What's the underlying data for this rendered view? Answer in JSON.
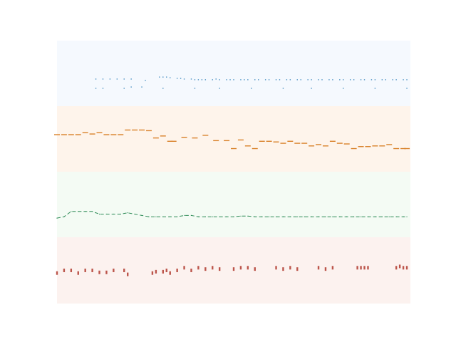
{
  "chart_data": {
    "type": "line",
    "title": "",
    "xlabel": "",
    "ylabel": "",
    "xlim": [
      0,
      1
    ],
    "grid": false,
    "legend": false,
    "bands": [
      {
        "color": "#1f77b4",
        "fill": "#f5f9fe"
      },
      {
        "color": "#d9822b",
        "fill": "#fef4eb"
      },
      {
        "color": "#2e8b57",
        "fill": "#f4fbf4"
      },
      {
        "color": "#b03a2e",
        "fill": "#fcf2ef"
      }
    ],
    "series": [
      {
        "kind": "dots",
        "values": [
          [
            0.11,
            0.42
          ],
          [
            0.13,
            0.42
          ],
          [
            0.15,
            0.42
          ],
          [
            0.17,
            0.42
          ],
          [
            0.19,
            0.42
          ],
          [
            0.21,
            0.42
          ],
          [
            0.25,
            0.4
          ],
          [
            0.29,
            0.45
          ],
          [
            0.3,
            0.45
          ],
          [
            0.31,
            0.45
          ],
          [
            0.32,
            0.44
          ],
          [
            0.34,
            0.43
          ],
          [
            0.35,
            0.43
          ],
          [
            0.36,
            0.42
          ],
          [
            0.38,
            0.42
          ],
          [
            0.39,
            0.41
          ],
          [
            0.4,
            0.41
          ],
          [
            0.41,
            0.41
          ],
          [
            0.42,
            0.41
          ],
          [
            0.44,
            0.41
          ],
          [
            0.45,
            0.42
          ],
          [
            0.46,
            0.41
          ],
          [
            0.48,
            0.41
          ],
          [
            0.49,
            0.41
          ],
          [
            0.5,
            0.41
          ],
          [
            0.52,
            0.41
          ],
          [
            0.53,
            0.41
          ],
          [
            0.54,
            0.41
          ],
          [
            0.56,
            0.41
          ],
          [
            0.57,
            0.41
          ],
          [
            0.59,
            0.41
          ],
          [
            0.6,
            0.41
          ],
          [
            0.62,
            0.41
          ],
          [
            0.63,
            0.41
          ],
          [
            0.65,
            0.41
          ],
          [
            0.66,
            0.41
          ],
          [
            0.68,
            0.41
          ],
          [
            0.69,
            0.41
          ],
          [
            0.71,
            0.41
          ],
          [
            0.72,
            0.41
          ],
          [
            0.74,
            0.41
          ],
          [
            0.75,
            0.41
          ],
          [
            0.77,
            0.41
          ],
          [
            0.78,
            0.41
          ],
          [
            0.8,
            0.41
          ],
          [
            0.81,
            0.41
          ],
          [
            0.83,
            0.41
          ],
          [
            0.84,
            0.41
          ],
          [
            0.86,
            0.41
          ],
          [
            0.87,
            0.41
          ],
          [
            0.89,
            0.41
          ],
          [
            0.9,
            0.41
          ],
          [
            0.92,
            0.41
          ],
          [
            0.93,
            0.41
          ],
          [
            0.95,
            0.41
          ],
          [
            0.96,
            0.41
          ],
          [
            0.98,
            0.41
          ],
          [
            0.99,
            0.41
          ],
          [
            0.11,
            0.28
          ],
          [
            0.13,
            0.28
          ],
          [
            0.19,
            0.28
          ],
          [
            0.21,
            0.3
          ],
          [
            0.24,
            0.3
          ],
          [
            0.3,
            0.28
          ],
          [
            0.39,
            0.28
          ],
          [
            0.46,
            0.28
          ],
          [
            0.55,
            0.28
          ],
          [
            0.64,
            0.28
          ],
          [
            0.72,
            0.28
          ],
          [
            0.81,
            0.28
          ],
          [
            0.9,
            0.28
          ],
          [
            0.99,
            0.28
          ]
        ]
      },
      {
        "kind": "dashes",
        "values": [
          [
            0.0,
            0.57
          ],
          [
            0.02,
            0.57
          ],
          [
            0.04,
            0.57
          ],
          [
            0.06,
            0.57
          ],
          [
            0.08,
            0.6
          ],
          [
            0.1,
            0.58
          ],
          [
            0.12,
            0.6
          ],
          [
            0.14,
            0.57
          ],
          [
            0.16,
            0.57
          ],
          [
            0.18,
            0.57
          ],
          [
            0.2,
            0.64
          ],
          [
            0.22,
            0.64
          ],
          [
            0.24,
            0.64
          ],
          [
            0.26,
            0.63
          ],
          [
            0.28,
            0.52
          ],
          [
            0.3,
            0.55
          ],
          [
            0.32,
            0.47
          ],
          [
            0.33,
            0.47
          ],
          [
            0.36,
            0.53
          ],
          [
            0.39,
            0.52
          ],
          [
            0.42,
            0.56
          ],
          [
            0.45,
            0.48
          ],
          [
            0.48,
            0.48
          ],
          [
            0.5,
            0.36
          ],
          [
            0.52,
            0.49
          ],
          [
            0.54,
            0.4
          ],
          [
            0.56,
            0.36
          ],
          [
            0.58,
            0.47
          ],
          [
            0.6,
            0.47
          ],
          [
            0.62,
            0.46
          ],
          [
            0.64,
            0.44
          ],
          [
            0.66,
            0.47
          ],
          [
            0.68,
            0.44
          ],
          [
            0.7,
            0.44
          ],
          [
            0.72,
            0.4
          ],
          [
            0.74,
            0.42
          ],
          [
            0.76,
            0.4
          ],
          [
            0.78,
            0.47
          ],
          [
            0.8,
            0.44
          ],
          [
            0.82,
            0.43
          ],
          [
            0.84,
            0.36
          ],
          [
            0.86,
            0.39
          ],
          [
            0.88,
            0.39
          ],
          [
            0.9,
            0.4
          ],
          [
            0.92,
            0.4
          ],
          [
            0.94,
            0.42
          ],
          [
            0.96,
            0.36
          ],
          [
            0.98,
            0.36
          ],
          [
            0.99,
            0.36
          ]
        ]
      },
      {
        "kind": "line",
        "values": [
          [
            0.0,
            0.3
          ],
          [
            0.02,
            0.32
          ],
          [
            0.04,
            0.4
          ],
          [
            0.06,
            0.4
          ],
          [
            0.08,
            0.4
          ],
          [
            0.1,
            0.4
          ],
          [
            0.11,
            0.38
          ],
          [
            0.12,
            0.36
          ],
          [
            0.14,
            0.36
          ],
          [
            0.16,
            0.36
          ],
          [
            0.18,
            0.36
          ],
          [
            0.2,
            0.38
          ],
          [
            0.22,
            0.36
          ],
          [
            0.24,
            0.34
          ],
          [
            0.26,
            0.32
          ],
          [
            0.28,
            0.32
          ],
          [
            0.3,
            0.32
          ],
          [
            0.32,
            0.32
          ],
          [
            0.34,
            0.32
          ],
          [
            0.36,
            0.34
          ],
          [
            0.38,
            0.34
          ],
          [
            0.4,
            0.32
          ],
          [
            0.42,
            0.32
          ],
          [
            0.44,
            0.32
          ],
          [
            0.46,
            0.32
          ],
          [
            0.48,
            0.32
          ],
          [
            0.5,
            0.32
          ],
          [
            0.52,
            0.33
          ],
          [
            0.54,
            0.33
          ],
          [
            0.56,
            0.32
          ],
          [
            0.58,
            0.32
          ],
          [
            0.6,
            0.32
          ],
          [
            0.62,
            0.32
          ],
          [
            0.64,
            0.32
          ],
          [
            0.66,
            0.32
          ],
          [
            0.68,
            0.32
          ],
          [
            0.7,
            0.32
          ],
          [
            0.72,
            0.32
          ],
          [
            0.74,
            0.32
          ],
          [
            0.76,
            0.32
          ],
          [
            0.78,
            0.32
          ],
          [
            0.8,
            0.32
          ],
          [
            0.82,
            0.32
          ],
          [
            0.84,
            0.32
          ],
          [
            0.86,
            0.32
          ],
          [
            0.88,
            0.32
          ],
          [
            0.9,
            0.32
          ],
          [
            0.92,
            0.32
          ],
          [
            0.94,
            0.32
          ],
          [
            0.96,
            0.32
          ],
          [
            0.98,
            0.32
          ],
          [
            0.99,
            0.32
          ]
        ]
      },
      {
        "kind": "ticks",
        "values": [
          [
            0.0,
            0.46
          ],
          [
            0.02,
            0.5
          ],
          [
            0.04,
            0.5
          ],
          [
            0.06,
            0.46
          ],
          [
            0.08,
            0.5
          ],
          [
            0.1,
            0.5
          ],
          [
            0.12,
            0.47
          ],
          [
            0.14,
            0.47
          ],
          [
            0.16,
            0.5
          ],
          [
            0.19,
            0.5
          ],
          [
            0.2,
            0.44
          ],
          [
            0.27,
            0.46
          ],
          [
            0.28,
            0.48
          ],
          [
            0.3,
            0.48
          ],
          [
            0.31,
            0.5
          ],
          [
            0.32,
            0.46
          ],
          [
            0.34,
            0.5
          ],
          [
            0.36,
            0.54
          ],
          [
            0.38,
            0.5
          ],
          [
            0.4,
            0.54
          ],
          [
            0.42,
            0.52
          ],
          [
            0.44,
            0.54
          ],
          [
            0.46,
            0.52
          ],
          [
            0.5,
            0.52
          ],
          [
            0.52,
            0.54
          ],
          [
            0.54,
            0.54
          ],
          [
            0.56,
            0.52
          ],
          [
            0.62,
            0.54
          ],
          [
            0.64,
            0.52
          ],
          [
            0.66,
            0.54
          ],
          [
            0.68,
            0.52
          ],
          [
            0.74,
            0.54
          ],
          [
            0.76,
            0.52
          ],
          [
            0.78,
            0.54
          ],
          [
            0.85,
            0.54
          ],
          [
            0.86,
            0.54
          ],
          [
            0.87,
            0.54
          ],
          [
            0.88,
            0.54
          ],
          [
            0.96,
            0.54
          ],
          [
            0.97,
            0.56
          ],
          [
            0.98,
            0.54
          ],
          [
            0.99,
            0.54
          ]
        ]
      }
    ]
  }
}
